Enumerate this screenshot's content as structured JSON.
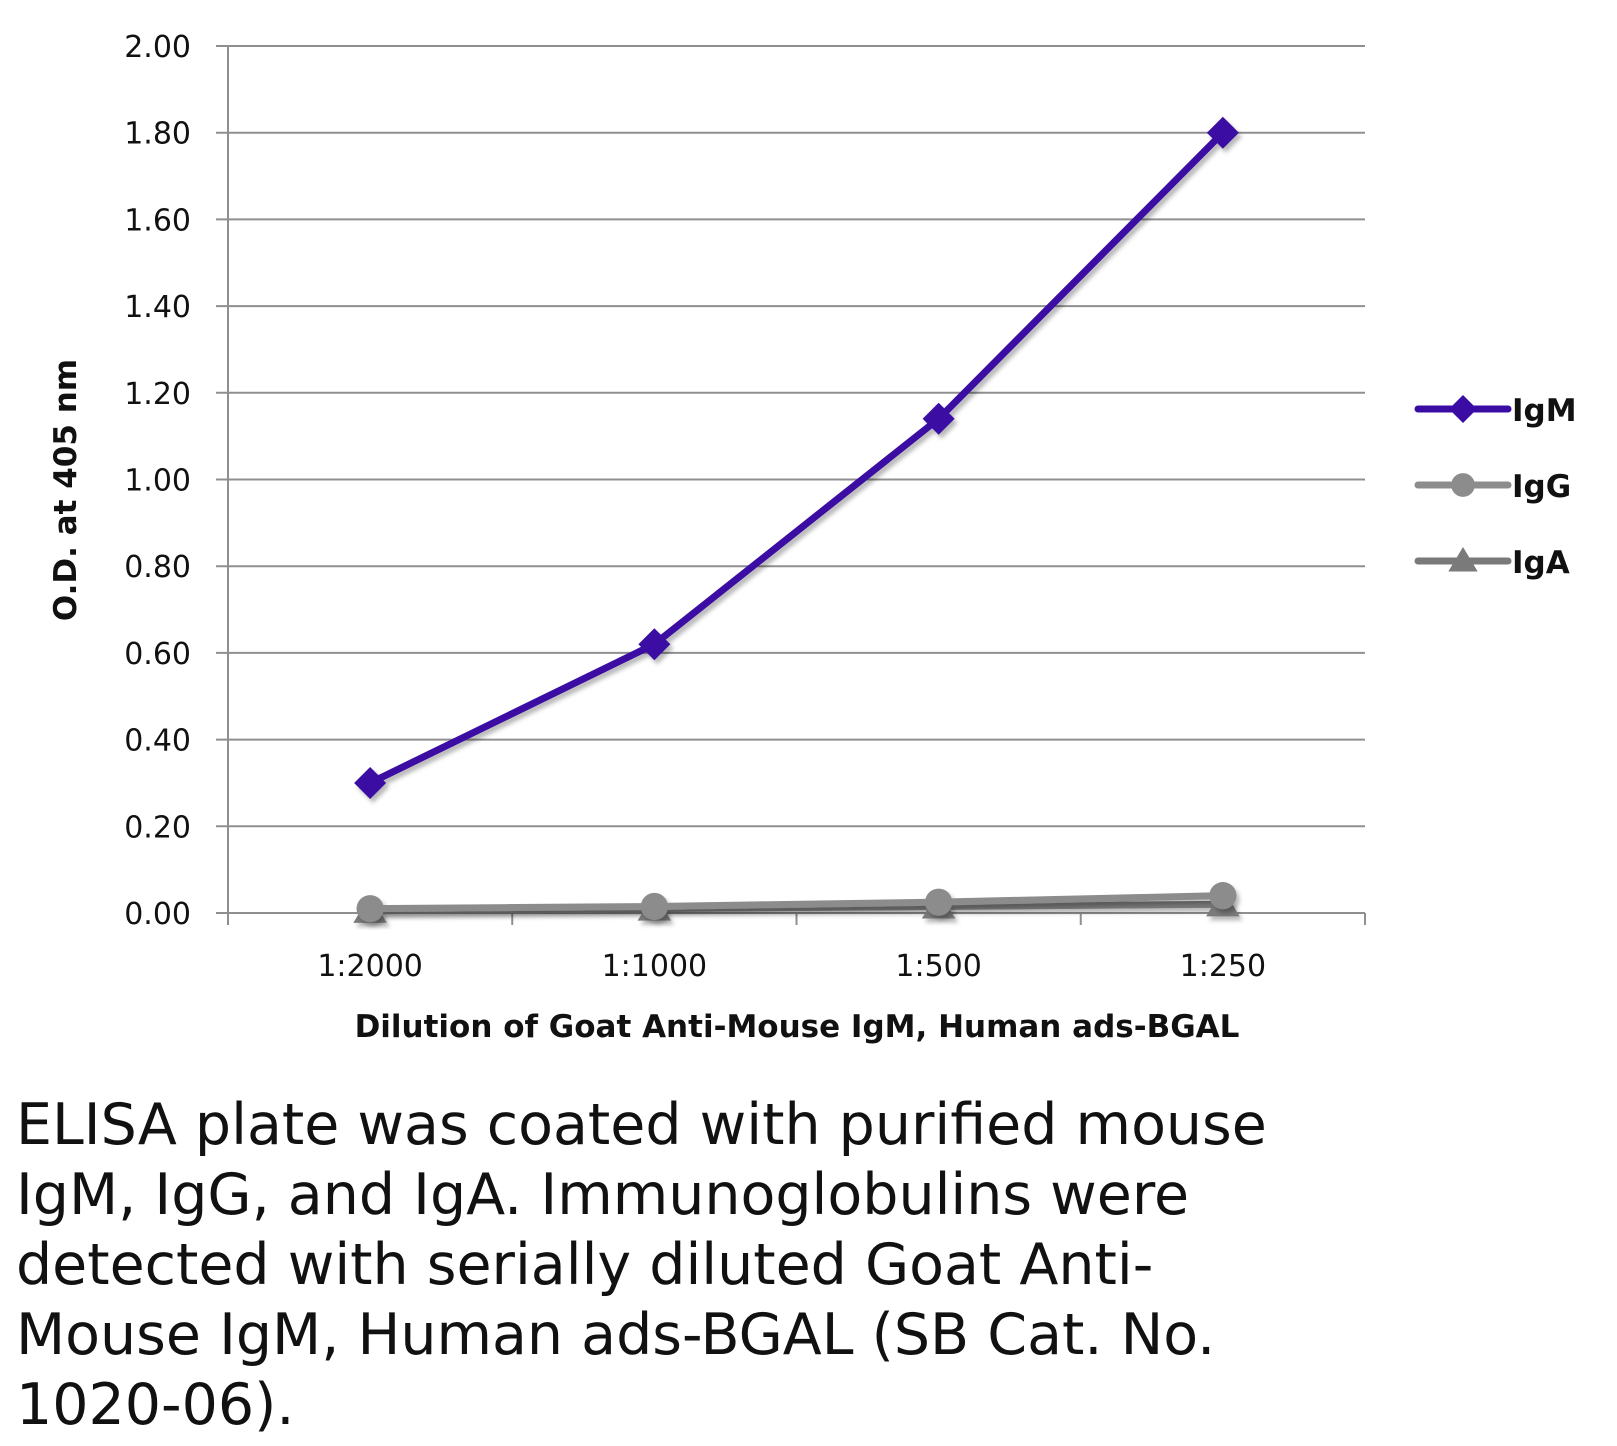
{
  "chart_data": {
    "type": "line",
    "title": "",
    "xlabel": "Dilution of Goat Anti-Mouse IgM, Human ads-BGAL",
    "ylabel": "O.D. at 405 nm",
    "categories": [
      "1:2000",
      "1:1000",
      "1:500",
      "1:250"
    ],
    "ylim": [
      0,
      2.0
    ],
    "yticks": [
      "0.00",
      "0.20",
      "0.40",
      "0.60",
      "0.80",
      "1.00",
      "1.20",
      "1.40",
      "1.60",
      "1.80",
      "2.00"
    ],
    "grid": true,
    "legend_position": "right",
    "series": [
      {
        "name": "IgM",
        "values": [
          0.3,
          0.62,
          1.14,
          1.8
        ],
        "color": "#3A0CA3",
        "marker": "diamond"
      },
      {
        "name": "IgG",
        "values": [
          0.01,
          0.015,
          0.025,
          0.04
        ],
        "color": "#8C8C8C",
        "marker": "circle"
      },
      {
        "name": "IgA",
        "values": [
          0.005,
          0.01,
          0.015,
          0.02
        ],
        "color": "#7A7A7A",
        "marker": "triangle"
      }
    ]
  },
  "caption": "ELISA plate was coated with purified mouse IgM, IgG, and IgA.  Immunoglobulins were detected with serially diluted Goat Anti-Mouse IgM, Human ads-BGAL (SB Cat. No. 1020-06)."
}
